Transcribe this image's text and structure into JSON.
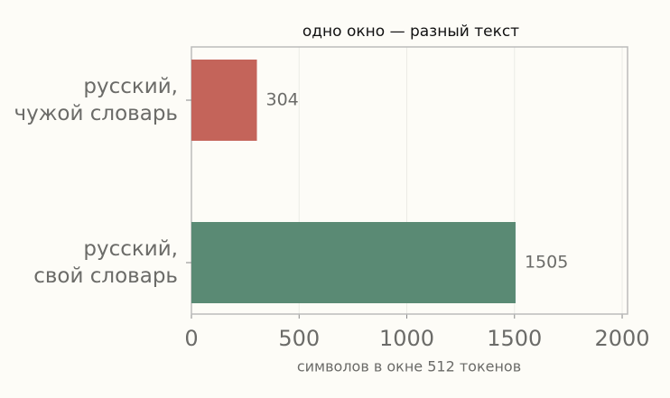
{
  "chart_data": {
    "type": "barh",
    "title": "одно окно — разный текст",
    "xlabel": "символов в окне 512 токенов",
    "categories": [
      [
        "русский,",
        "чужой словарь"
      ],
      [
        "русский,",
        "свой словарь"
      ]
    ],
    "values": [
      304,
      1505
    ],
    "colors": [
      "#c4645a",
      "#5a8a74"
    ],
    "xlim": [
      0,
      2025
    ],
    "xticks": [
      0,
      500,
      1000,
      1500,
      2000
    ],
    "grid": true
  }
}
